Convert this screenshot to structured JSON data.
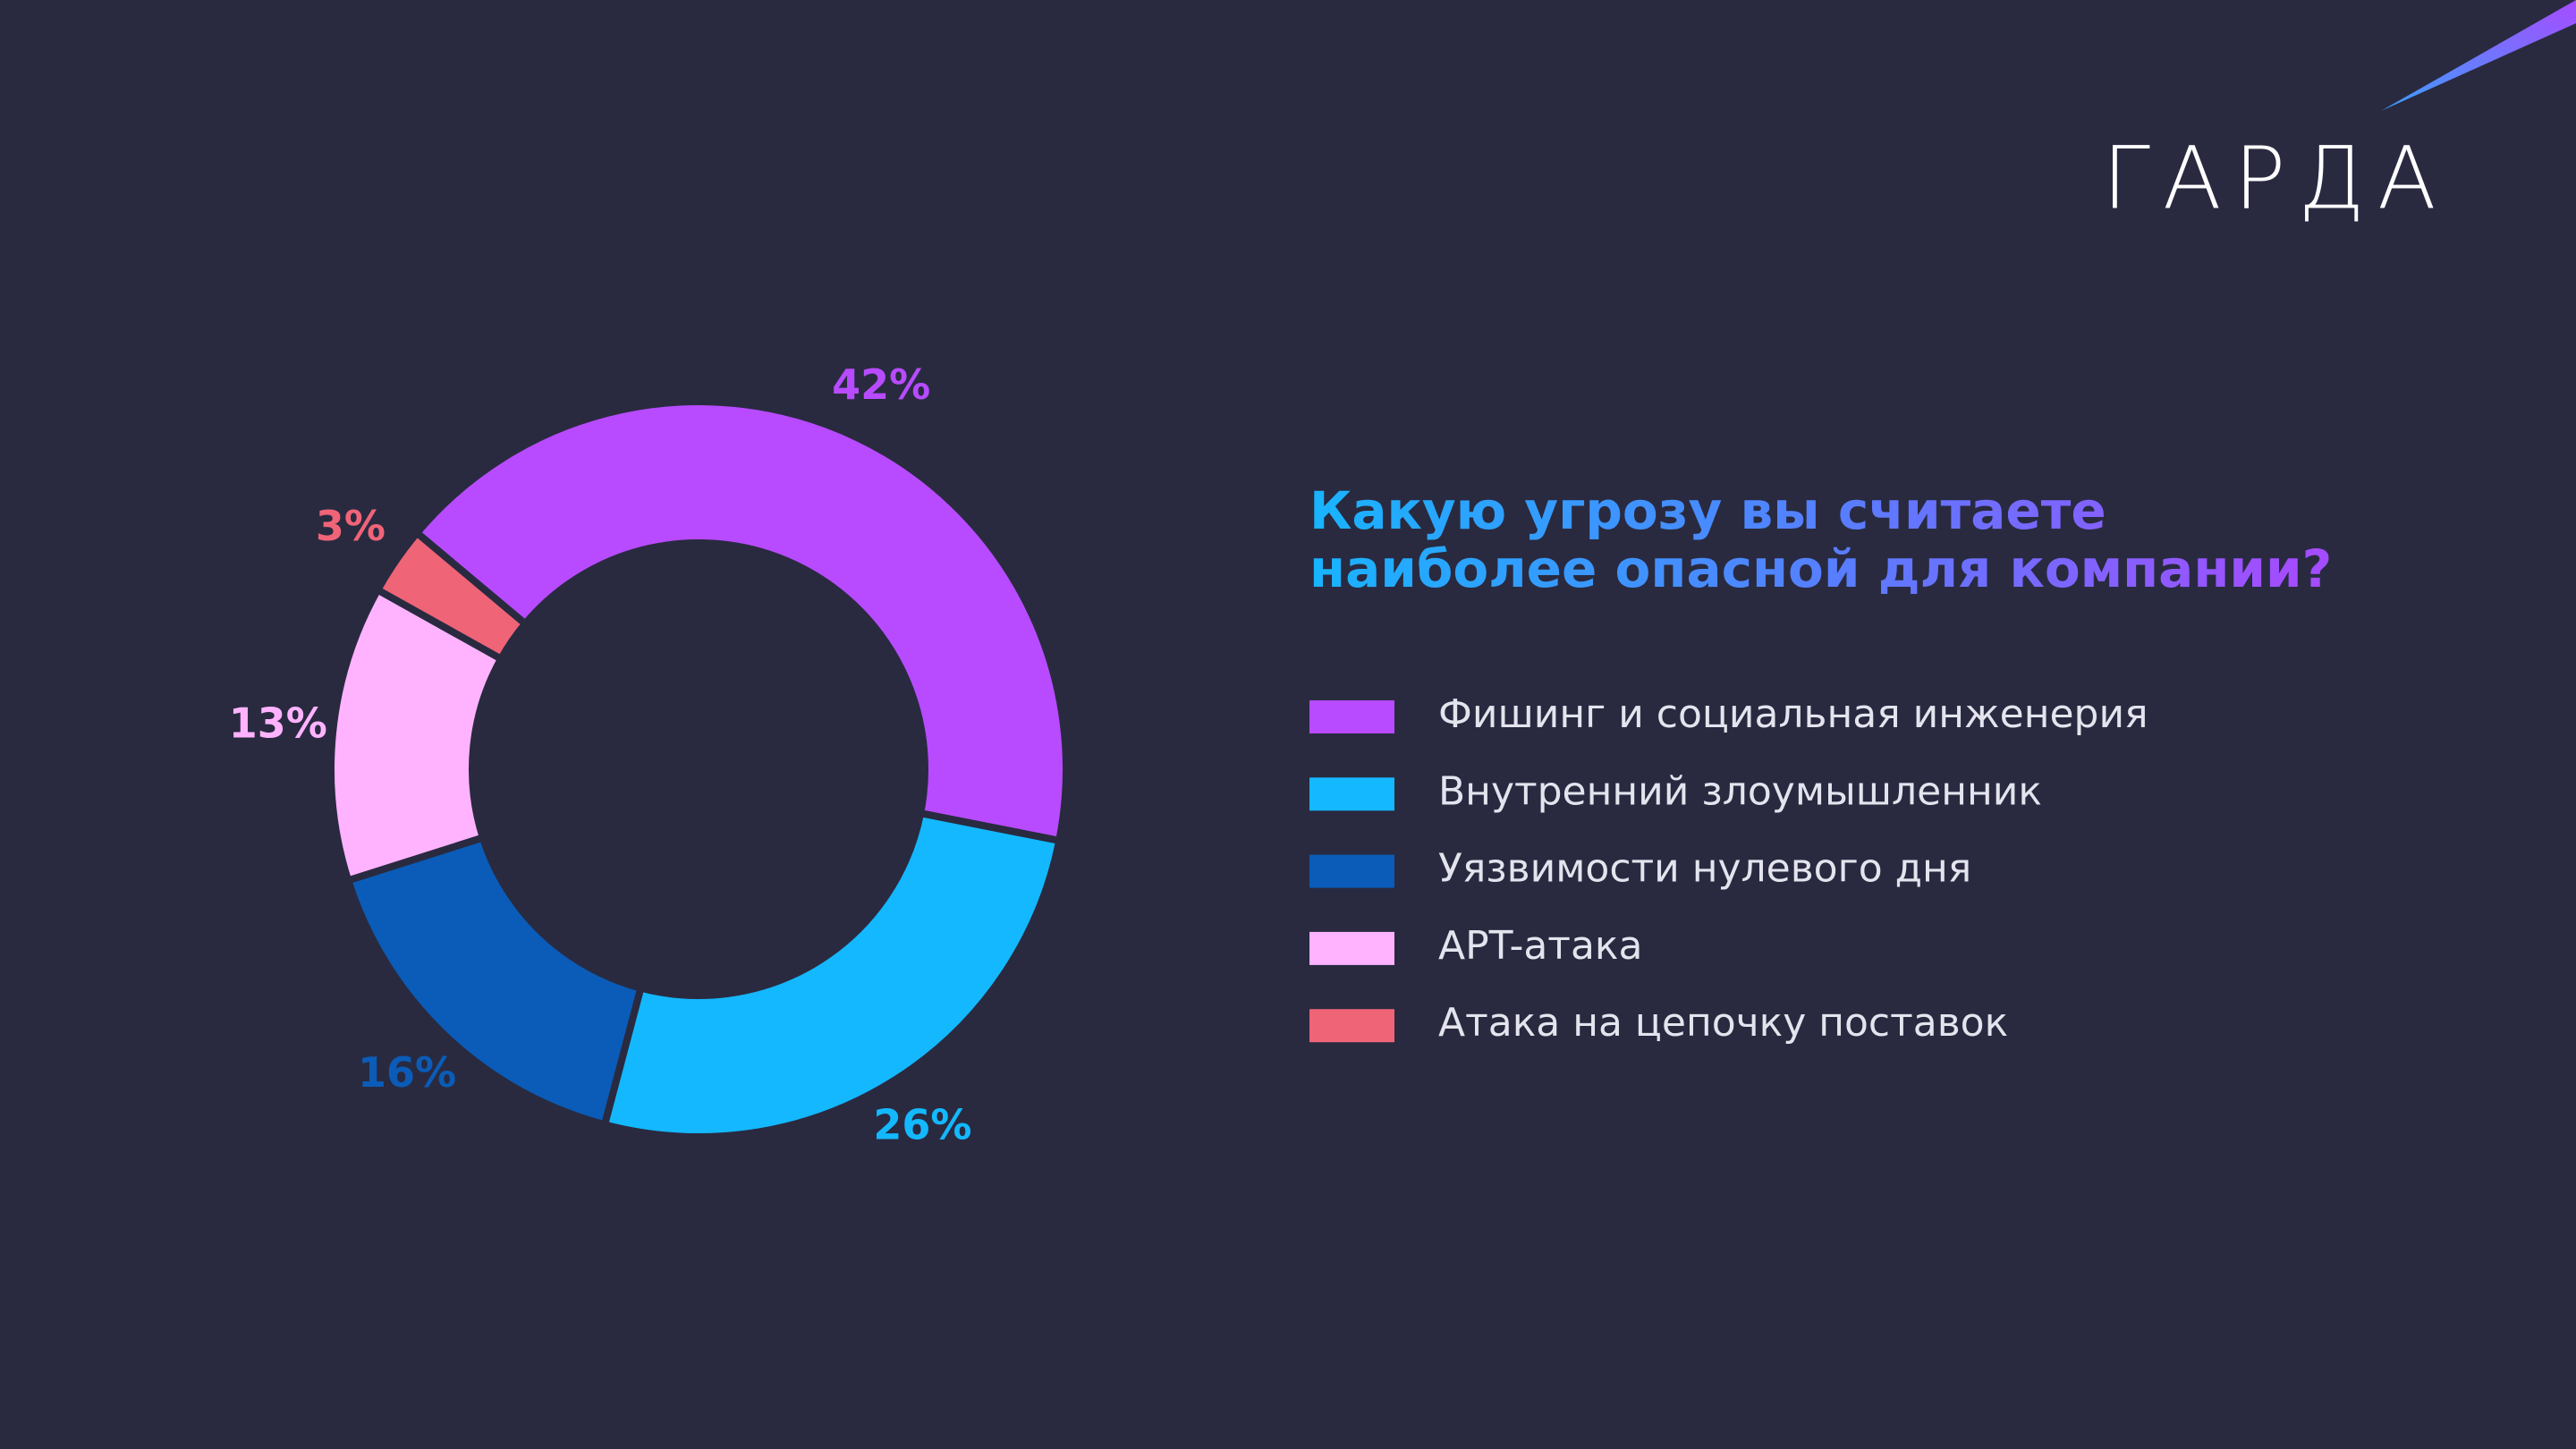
{
  "logo": "ГАРДА",
  "chart_data": {
    "type": "pie",
    "title_lines": [
      "Какую угрозу вы считаете",
      "наиболее опасной для компании?"
    ],
    "categories": [
      "Фишинг и социальная инженерия",
      "Внутренний злоумышленник",
      "Уязвимости нулевого дня",
      "APT-атака",
      "Атака на цепочку поставок"
    ],
    "values": [
      42,
      26,
      16,
      13,
      3
    ],
    "value_labels": [
      "42%",
      "26%",
      "16%",
      "13%",
      "3%"
    ],
    "colors": [
      "#b84bff",
      "#14b8ff",
      "#0a5cb8",
      "#ffb3ff",
      "#f06478"
    ]
  }
}
